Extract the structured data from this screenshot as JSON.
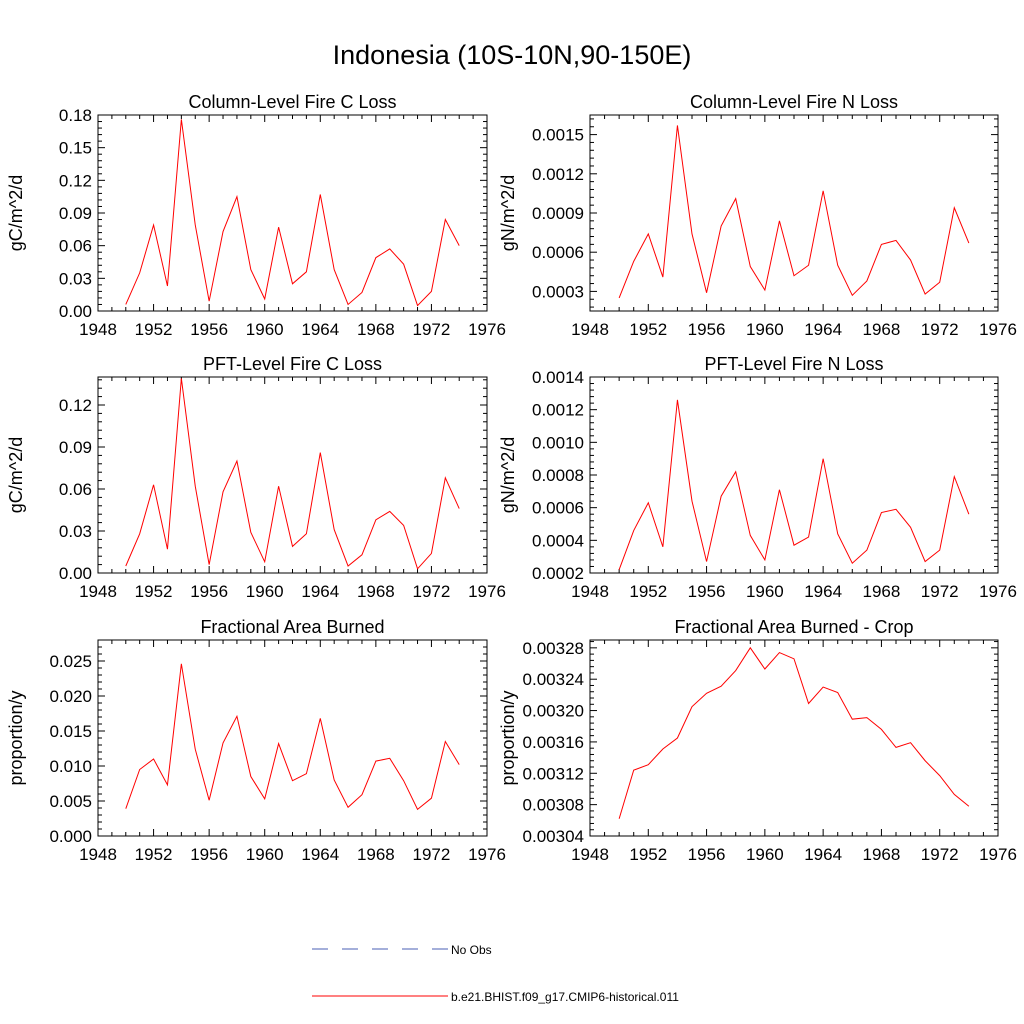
{
  "page": {
    "title": "Indonesia (10S-10N,90-150E)"
  },
  "colors": {
    "model_line": "#ff0000",
    "obs_line": "#4a5fb5",
    "axis": "#000000"
  },
  "legend": {
    "entries": [
      {
        "label": "No Obs",
        "style": "dashed",
        "color": "#4a5fb5"
      },
      {
        "label": "b.e21.BHIST.f09_g17.CMIP6-historical.011",
        "style": "solid",
        "color": "#ff0000"
      }
    ]
  },
  "chart_data": [
    {
      "type": "line",
      "title": "Column-Level Fire C Loss",
      "ylabel": "gC/m^2/d",
      "xlabel": "",
      "xlim": [
        1948,
        1976
      ],
      "xticks": [
        "1948",
        "1952",
        "1956",
        "1960",
        "1964",
        "1968",
        "1972",
        "1976"
      ],
      "ylim": [
        0,
        0.18
      ],
      "yticks": [
        "0.00",
        "0.03",
        "0.06",
        "0.09",
        "0.12",
        "0.15",
        "0.18"
      ],
      "x": [
        1950,
        1951,
        1952,
        1953,
        1954,
        1955,
        1956,
        1957,
        1958,
        1959,
        1960,
        1961,
        1962,
        1963,
        1964,
        1965,
        1966,
        1967,
        1968,
        1969,
        1970,
        1971,
        1972,
        1973,
        1974
      ],
      "series": [
        {
          "name": "b.e21.BHIST.f09_g17.CMIP6-historical.011",
          "values": [
            0.006,
            0.035,
            0.079,
            0.023,
            0.176,
            0.079,
            0.009,
            0.073,
            0.105,
            0.038,
            0.011,
            0.077,
            0.025,
            0.036,
            0.107,
            0.038,
            0.006,
            0.017,
            0.049,
            0.057,
            0.043,
            0.005,
            0.018,
            0.084,
            0.06
          ]
        }
      ]
    },
    {
      "type": "line",
      "title": "Column-Level Fire N Loss",
      "ylabel": "gN/m^2/d",
      "xlabel": "",
      "xlim": [
        1948,
        1976
      ],
      "xticks": [
        "1948",
        "1952",
        "1956",
        "1960",
        "1964",
        "1968",
        "1972",
        "1976"
      ],
      "ylim": [
        0.00015,
        0.00165
      ],
      "yticks": [
        "0.0003",
        "0.0006",
        "0.0009",
        "0.0012",
        "0.0015"
      ],
      "x": [
        1950,
        1951,
        1952,
        1953,
        1954,
        1955,
        1956,
        1957,
        1958,
        1959,
        1960,
        1961,
        1962,
        1963,
        1964,
        1965,
        1966,
        1967,
        1968,
        1969,
        1970,
        1971,
        1972,
        1973,
        1974
      ],
      "series": [
        {
          "name": "b.e21.BHIST.f09_g17.CMIP6-historical.011",
          "values": [
            0.00025,
            0.00053,
            0.00074,
            0.00041,
            0.00157,
            0.00074,
            0.00029,
            0.0008,
            0.00101,
            0.00049,
            0.00031,
            0.00084,
            0.00042,
            0.0005,
            0.00107,
            0.0005,
            0.00027,
            0.00038,
            0.00066,
            0.00069,
            0.00054,
            0.00028,
            0.00037,
            0.00094,
            0.00067
          ]
        }
      ]
    },
    {
      "type": "line",
      "title": "PFT-Level Fire C Loss",
      "ylabel": "gC/m^2/d",
      "xlabel": "",
      "xlim": [
        1948,
        1976
      ],
      "xticks": [
        "1948",
        "1952",
        "1956",
        "1960",
        "1964",
        "1968",
        "1972",
        "1976"
      ],
      "ylim": [
        0,
        0.14
      ],
      "yticks": [
        "0.00",
        "0.03",
        "0.06",
        "0.09",
        "0.12"
      ],
      "x": [
        1950,
        1951,
        1952,
        1953,
        1954,
        1955,
        1956,
        1957,
        1958,
        1959,
        1960,
        1961,
        1962,
        1963,
        1964,
        1965,
        1966,
        1967,
        1968,
        1969,
        1970,
        1971,
        1972,
        1973,
        1974
      ],
      "series": [
        {
          "name": "b.e21.BHIST.f09_g17.CMIP6-historical.011",
          "values": [
            0.005,
            0.028,
            0.063,
            0.017,
            0.139,
            0.062,
            0.006,
            0.058,
            0.08,
            0.029,
            0.008,
            0.062,
            0.019,
            0.028,
            0.086,
            0.031,
            0.005,
            0.013,
            0.038,
            0.044,
            0.034,
            0.003,
            0.014,
            0.068,
            0.046
          ]
        }
      ]
    },
    {
      "type": "line",
      "title": "PFT-Level Fire N Loss",
      "ylabel": "gN/m^2/d",
      "xlabel": "",
      "xlim": [
        1948,
        1976
      ],
      "xticks": [
        "1948",
        "1952",
        "1956",
        "1960",
        "1964",
        "1968",
        "1972",
        "1976"
      ],
      "ylim": [
        0.0002,
        0.0014
      ],
      "yticks": [
        "0.0002",
        "0.0004",
        "0.0006",
        "0.0008",
        "0.0010",
        "0.0012",
        "0.0014"
      ],
      "x": [
        1950,
        1951,
        1952,
        1953,
        1954,
        1955,
        1956,
        1957,
        1958,
        1959,
        1960,
        1961,
        1962,
        1963,
        1964,
        1965,
        1966,
        1967,
        1968,
        1969,
        1970,
        1971,
        1972,
        1973,
        1974
      ],
      "series": [
        {
          "name": "b.e21.BHIST.f09_g17.CMIP6-historical.011",
          "values": [
            0.00022,
            0.00046,
            0.00063,
            0.00036,
            0.00126,
            0.00064,
            0.00027,
            0.00067,
            0.00082,
            0.00043,
            0.00028,
            0.00071,
            0.00037,
            0.00042,
            0.0009,
            0.00044,
            0.00026,
            0.00034,
            0.00057,
            0.00059,
            0.00048,
            0.00027,
            0.00034,
            0.00079,
            0.00056
          ]
        }
      ]
    },
    {
      "type": "line",
      "title": "Fractional Area Burned",
      "ylabel": "proportion/y",
      "xlabel": "",
      "xlim": [
        1948,
        1976
      ],
      "xticks": [
        "1948",
        "1952",
        "1956",
        "1960",
        "1964",
        "1968",
        "1972",
        "1976"
      ],
      "ylim": [
        0,
        0.028
      ],
      "yticks": [
        "0.000",
        "0.005",
        "0.010",
        "0.015",
        "0.020",
        "0.025"
      ],
      "x": [
        1950,
        1951,
        1952,
        1953,
        1954,
        1955,
        1956,
        1957,
        1958,
        1959,
        1960,
        1961,
        1962,
        1963,
        1964,
        1965,
        1966,
        1967,
        1968,
        1969,
        1970,
        1971,
        1972,
        1973,
        1974
      ],
      "series": [
        {
          "name": "b.e21.BHIST.f09_g17.CMIP6-historical.011",
          "values": [
            0.0039,
            0.0095,
            0.011,
            0.0073,
            0.0246,
            0.0124,
            0.0051,
            0.0133,
            0.0171,
            0.0085,
            0.0053,
            0.0132,
            0.0079,
            0.0089,
            0.0168,
            0.008,
            0.0041,
            0.0059,
            0.0107,
            0.0111,
            0.0079,
            0.0038,
            0.0054,
            0.0135,
            0.0102
          ]
        }
      ]
    },
    {
      "type": "line",
      "title": "Fractional Area Burned - Crop",
      "ylabel": "proportion/y",
      "xlabel": "",
      "xlim": [
        1948,
        1976
      ],
      "xticks": [
        "1948",
        "1952",
        "1956",
        "1960",
        "1964",
        "1968",
        "1972",
        "1976"
      ],
      "ylim": [
        0.00304,
        0.00329
      ],
      "yticks": [
        "0.00304",
        "0.00308",
        "0.00312",
        "0.00316",
        "0.00320",
        "0.00324",
        "0.00328"
      ],
      "x": [
        1950,
        1951,
        1952,
        1953,
        1954,
        1955,
        1956,
        1957,
        1958,
        1959,
        1960,
        1961,
        1962,
        1963,
        1964,
        1965,
        1966,
        1967,
        1968,
        1969,
        1970,
        1971,
        1972,
        1973,
        1974
      ],
      "series": [
        {
          "name": "b.e21.BHIST.f09_g17.CMIP6-historical.011",
          "values": [
            0.003062,
            0.003124,
            0.003131,
            0.003151,
            0.003165,
            0.003205,
            0.003222,
            0.003231,
            0.003251,
            0.00328,
            0.003253,
            0.003274,
            0.003266,
            0.003209,
            0.00323,
            0.003223,
            0.003189,
            0.003191,
            0.003176,
            0.003153,
            0.003159,
            0.003136,
            0.003117,
            0.003093,
            0.003078
          ]
        }
      ]
    }
  ]
}
